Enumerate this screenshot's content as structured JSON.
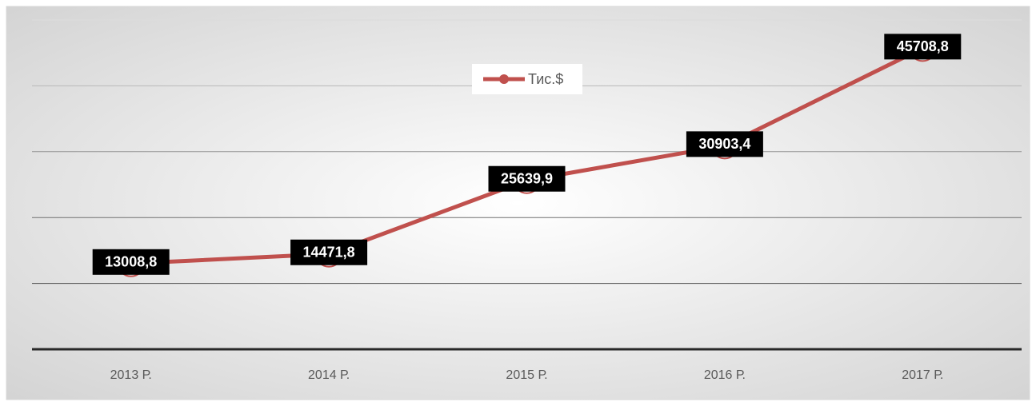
{
  "chart_data": {
    "type": "line",
    "categories": [
      "2013 Р.",
      "2014 Р.",
      "2015 Р.",
      "2016 Р.",
      "2017 Р."
    ],
    "series": [
      {
        "name": "Тис.$",
        "color": "#c0504d",
        "values": [
          13008.8,
          14471.8,
          25639.9,
          30903.4,
          45708.8
        ],
        "value_labels": [
          "13008,8",
          "14471,8",
          "25639,9",
          "30903,4",
          "45708,8"
        ]
      }
    ],
    "ylim": [
      0,
      50000
    ],
    "yticks": [
      0,
      10000,
      20000,
      30000,
      40000,
      50000
    ],
    "grid": true,
    "legend": "top"
  }
}
